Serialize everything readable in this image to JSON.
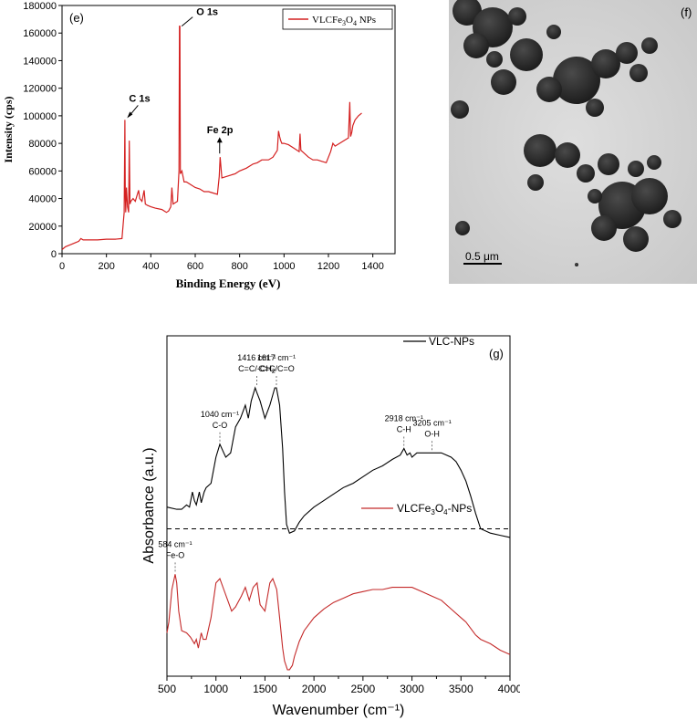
{
  "chart_data": [
    {
      "type": "line",
      "panel_label": "(e)",
      "xlabel": "Binding Energy (eV)",
      "ylabel": "Intensity (cps)",
      "xlim": [
        0,
        1500
      ],
      "ylim": [
        0,
        180000
      ],
      "x_ticks": [
        0,
        200,
        400,
        600,
        800,
        1000,
        1200,
        1400
      ],
      "y_ticks": [
        0,
        20000,
        40000,
        60000,
        80000,
        100000,
        120000,
        140000,
        160000,
        180000
      ],
      "legend": {
        "position": "top-right",
        "entries": [
          {
            "prefix": "VLCFe",
            "sub1": "3",
            "mid": "O",
            "sub2": "4",
            "suffix": " NPs"
          }
        ]
      },
      "series": [
        {
          "color": "#d42020",
          "x": [
            0,
            15,
            30,
            45,
            60,
            75,
            85,
            95,
            110,
            130,
            160,
            200,
            240,
            270,
            280,
            283,
            285,
            287,
            290,
            295,
            300,
            303,
            306,
            310,
            320,
            330,
            345,
            350,
            360,
            370,
            375,
            385,
            400,
            420,
            450,
            470,
            480,
            490,
            495,
            500,
            520,
            527,
            529,
            531,
            533,
            540,
            550,
            560,
            580,
            600,
            620,
            640,
            660,
            680,
            700,
            708,
            712,
            720,
            740,
            760,
            780,
            800,
            830,
            860,
            880,
            900,
            930,
            950,
            970,
            975,
            980,
            985,
            990,
            1000,
            1020,
            1050,
            1068,
            1072,
            1076,
            1090,
            1110,
            1130,
            1150,
            1170,
            1190,
            1210,
            1220,
            1230,
            1250,
            1270,
            1290,
            1296,
            1300,
            1305,
            1310,
            1320,
            1335,
            1350
          ],
          "y": [
            3000,
            5000,
            6000,
            7000,
            8000,
            9000,
            11000,
            10000,
            10000,
            10000,
            10000,
            10500,
            10500,
            11000,
            30000,
            97000,
            45000,
            30000,
            48000,
            34000,
            30000,
            82000,
            36000,
            38000,
            40000,
            38000,
            46000,
            40000,
            38000,
            46000,
            36000,
            35000,
            34000,
            33000,
            32000,
            30000,
            31000,
            34000,
            48000,
            36000,
            38000,
            60000,
            165000,
            165000,
            58000,
            60000,
            52000,
            52000,
            50000,
            48000,
            47000,
            45000,
            45000,
            44000,
            43000,
            56000,
            70000,
            55000,
            56000,
            57000,
            58000,
            60000,
            62000,
            65000,
            66000,
            68000,
            68000,
            70000,
            75000,
            89000,
            85000,
            82000,
            80000,
            80000,
            79000,
            76000,
            74000,
            87000,
            75000,
            73000,
            70000,
            68000,
            68000,
            67000,
            66000,
            74000,
            80000,
            78000,
            80000,
            82000,
            84000,
            110000,
            85000,
            88000,
            93000,
            97000,
            100000,
            102000
          ]
        }
      ],
      "annotations": [
        {
          "text": "C 1s",
          "x": 285,
          "y": 97000
        },
        {
          "text": "O 1s",
          "x": 531,
          "y": 165000
        },
        {
          "text": "Fe 2p",
          "x": 710,
          "y": 70000
        }
      ]
    },
    {
      "type": "image",
      "panel_label": "(f)",
      "scale_bar": "0.5 μm"
    },
    {
      "type": "line",
      "panel_label": "(g)",
      "xlabel": "Wavenumber (cm⁻¹)",
      "ylabel": "Absorbance (a.u.)",
      "xlim": [
        500,
        4000
      ],
      "x_ticks": [
        500,
        1000,
        1500,
        2000,
        2500,
        3000,
        3500,
        4000
      ],
      "y_scale": "arbitrary, offset traces",
      "legend": {
        "position": "top-right"
      },
      "series": [
        {
          "name": "VLC-NPs",
          "color": "#000000",
          "x": [
            500,
            600,
            650,
            700,
            730,
            760,
            780,
            800,
            830,
            850,
            880,
            900,
            950,
            1000,
            1040,
            1080,
            1100,
            1150,
            1200,
            1250,
            1300,
            1330,
            1360,
            1400,
            1416,
            1450,
            1500,
            1550,
            1600,
            1617,
            1650,
            1680,
            1700,
            1720,
            1750,
            1800,
            1850,
            1900,
            2000,
            2100,
            2200,
            2300,
            2400,
            2500,
            2600,
            2700,
            2800,
            2880,
            2918,
            2950,
            2980,
            3000,
            3050,
            3100,
            3205,
            3300,
            3400,
            3450,
            3500,
            3550,
            3600,
            3650,
            3700,
            3800,
            3900,
            4000
          ],
          "y": [
            0.63,
            0.62,
            0.62,
            0.64,
            0.63,
            0.7,
            0.66,
            0.64,
            0.7,
            0.65,
            0.7,
            0.72,
            0.74,
            0.86,
            0.92,
            0.88,
            0.86,
            0.88,
            1.0,
            1.04,
            1.1,
            1.04,
            1.12,
            1.18,
            1.16,
            1.12,
            1.04,
            1.1,
            1.18,
            1.18,
            1.1,
            0.9,
            0.7,
            0.55,
            0.51,
            0.52,
            0.56,
            0.59,
            0.63,
            0.66,
            0.69,
            0.72,
            0.74,
            0.77,
            0.8,
            0.82,
            0.85,
            0.87,
            0.9,
            0.87,
            0.88,
            0.86,
            0.88,
            0.88,
            0.88,
            0.88,
            0.86,
            0.84,
            0.8,
            0.75,
            0.68,
            0.6,
            0.53,
            0.51,
            0.5,
            0.49
          ]
        },
        {
          "name": "VLCFe3O4-NPs",
          "legend": {
            "prefix": "VLCFe",
            "sub1": "3",
            "mid": "O",
            "sub2": "4",
            "suffix": "-NPs"
          },
          "color": "#c42a2a",
          "x": [
            500,
            520,
            550,
            584,
            600,
            620,
            650,
            700,
            740,
            780,
            800,
            820,
            850,
            870,
            900,
            950,
            1000,
            1040,
            1080,
            1120,
            1160,
            1200,
            1260,
            1300,
            1340,
            1380,
            1420,
            1450,
            1500,
            1550,
            1580,
            1620,
            1650,
            1680,
            1700,
            1730,
            1750,
            1780,
            1800,
            1850,
            1900,
            2000,
            2100,
            2200,
            2300,
            2400,
            2500,
            2600,
            2700,
            2800,
            2900,
            3000,
            3100,
            3200,
            3300,
            3400,
            3500,
            3550,
            3600,
            3650,
            3700,
            3750,
            3800,
            3900,
            4000
          ],
          "y": [
            0.05,
            0.1,
            0.25,
            0.32,
            0.28,
            0.15,
            0.06,
            0.05,
            0.03,
            0.0,
            0.02,
            -0.02,
            0.05,
            0.02,
            0.02,
            0.12,
            0.28,
            0.3,
            0.25,
            0.2,
            0.15,
            0.17,
            0.22,
            0.26,
            0.2,
            0.26,
            0.28,
            0.18,
            0.15,
            0.28,
            0.3,
            0.25,
            0.12,
            -0.02,
            -0.08,
            -0.12,
            -0.12,
            -0.1,
            -0.06,
            0.01,
            0.06,
            0.12,
            0.16,
            0.19,
            0.21,
            0.23,
            0.24,
            0.25,
            0.25,
            0.26,
            0.26,
            0.26,
            0.24,
            0.22,
            0.2,
            0.16,
            0.12,
            0.1,
            0.07,
            0.04,
            0.02,
            0.01,
            0.0,
            -0.03,
            -0.05
          ]
        }
      ],
      "baseline_dashed": 0.53,
      "annotations": [
        {
          "wavenumber": "1040 cm⁻¹",
          "assignment": "C-O",
          "x": 1040,
          "y": 0.92
        },
        {
          "wavenumber": "1416 cm⁻¹",
          "assignment": "C=C/-CH",
          "assignment_sub": "2",
          "x": 1416,
          "y": 1.18
        },
        {
          "wavenumber": "1617 cm⁻¹",
          "assignment": "C=C/C=O",
          "x": 1617,
          "y": 1.18
        },
        {
          "wavenumber": "2918 cm⁻¹",
          "assignment": "C-H",
          "x": 2918,
          "y": 0.9
        },
        {
          "wavenumber": "3205 cm⁻¹",
          "assignment": "O-H",
          "x": 3205,
          "y": 0.88
        },
        {
          "wavenumber": "584 cm⁻¹",
          "assignment": "Fe-O",
          "x": 584,
          "y": 0.32
        }
      ]
    }
  ]
}
